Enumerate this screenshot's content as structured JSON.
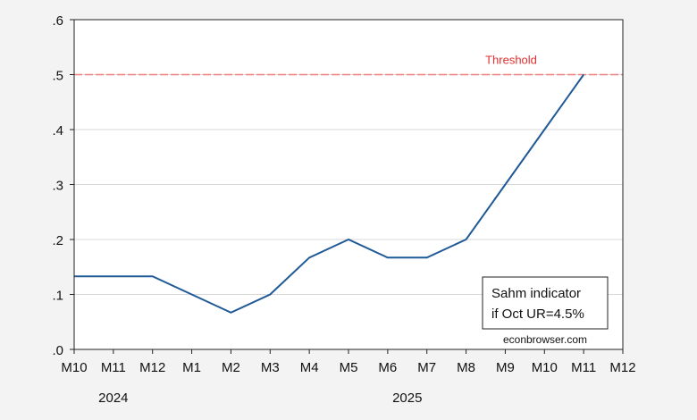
{
  "chart_data": {
    "type": "line",
    "title": "",
    "xlabel": "",
    "ylabel": "",
    "x": [
      "M10",
      "M11",
      "M12",
      "M1",
      "M2",
      "M3",
      "M4",
      "M5",
      "M6",
      "M7",
      "M8",
      "M9",
      "M10",
      "M11",
      "M12"
    ],
    "year_labels": [
      {
        "label": "2024",
        "from": 0,
        "to": 2
      },
      {
        "label": "2025",
        "from": 3,
        "to": 14
      }
    ],
    "yticks": [
      ".0",
      ".1",
      ".2",
      ".3",
      ".4",
      ".5",
      ".6"
    ],
    "ylim": [
      0,
      0.6
    ],
    "grid": true,
    "series": [
      {
        "name": "Sahm indicator",
        "color": "#1f5a96",
        "values": [
          0.133,
          0.133,
          0.133,
          0.1,
          0.067,
          0.1,
          0.167,
          0.2,
          0.167,
          0.167,
          0.2,
          0.3,
          0.4,
          0.5,
          null
        ]
      }
    ],
    "threshold": {
      "value": 0.5,
      "label": "Threshold",
      "color": "#e03030"
    },
    "legend": {
      "line1": "Sahm indicator",
      "line2": "if Oct UR=4.5%",
      "placement": "bottom-right"
    },
    "source": "econbrowser.com"
  }
}
